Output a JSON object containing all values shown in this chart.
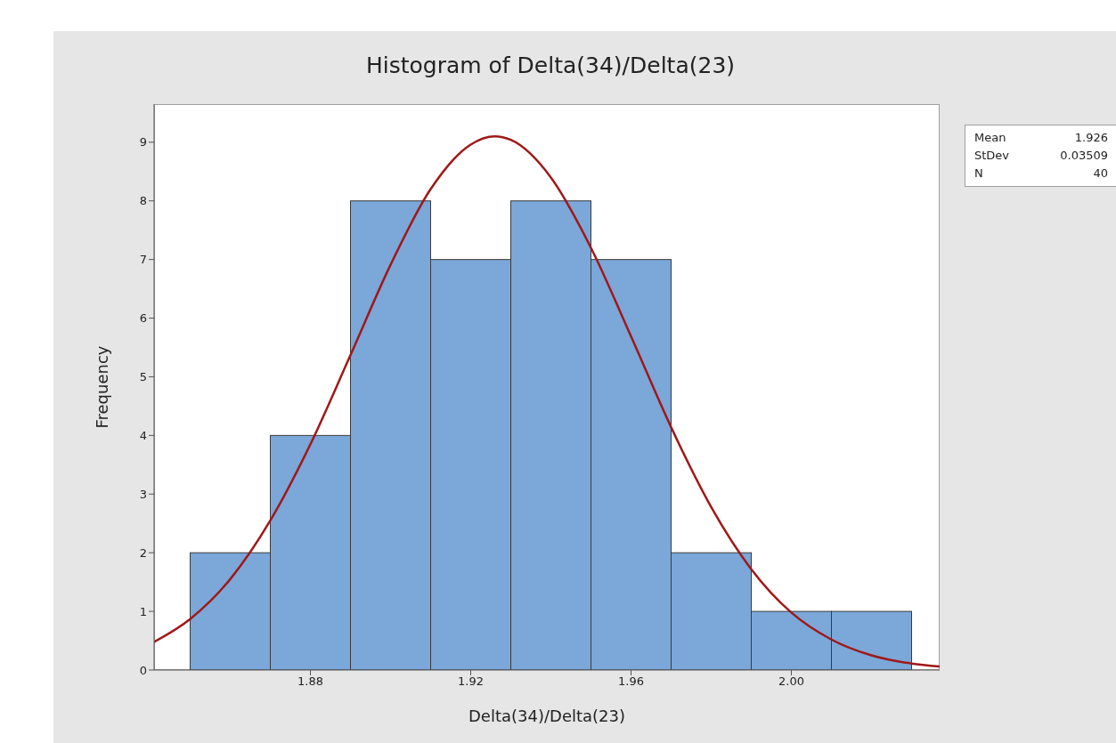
{
  "chart_data": {
    "type": "histogram",
    "title": "Histogram of Delta(34)/Delta(23)",
    "xlabel": "Delta(34)/Delta(23)",
    "ylabel": "Frequency",
    "bins": [
      1.85,
      1.87,
      1.89,
      1.91,
      1.93,
      1.95,
      1.97,
      1.99,
      2.01,
      2.03
    ],
    "values": [
      2,
      4,
      8,
      7,
      8,
      7,
      2,
      1,
      1
    ],
    "color": "#7ba7d9",
    "series": [
      {
        "type": "line",
        "color": "#a01818",
        "x": [
          1.841,
          1.85,
          1.86,
          1.87,
          1.88,
          1.89,
          1.9,
          1.91,
          1.92,
          1.926,
          1.93,
          1.94,
          1.95,
          1.96,
          1.97,
          1.98,
          1.99,
          2.0,
          2.01,
          2.02,
          2.03,
          2.037
        ],
        "values": [
          0.48,
          0.87,
          1.55,
          2.55,
          3.85,
          5.37,
          6.91,
          8.2,
          8.96,
          9.1,
          9.04,
          8.4,
          7.2,
          5.69,
          4.14,
          2.78,
          1.72,
          0.98,
          0.52,
          0.25,
          0.11,
          0.06
        ]
      }
    ],
    "xlim": [
      1.841,
      2.037
    ],
    "xticks": [
      1.88,
      1.92,
      1.96,
      {
        "value": 2,
        "label": "2.00"
      }
    ],
    "ylim": [
      0,
      9.65
    ],
    "yticks": [
      0,
      1,
      2,
      3,
      4,
      5,
      6,
      7,
      8,
      9
    ],
    "grid": false,
    "legend": false,
    "line_style": "solid",
    "marker": "none",
    "annotations": [
      "Mean 1.926",
      "StDev 0.03509",
      "N 40"
    ]
  }
}
